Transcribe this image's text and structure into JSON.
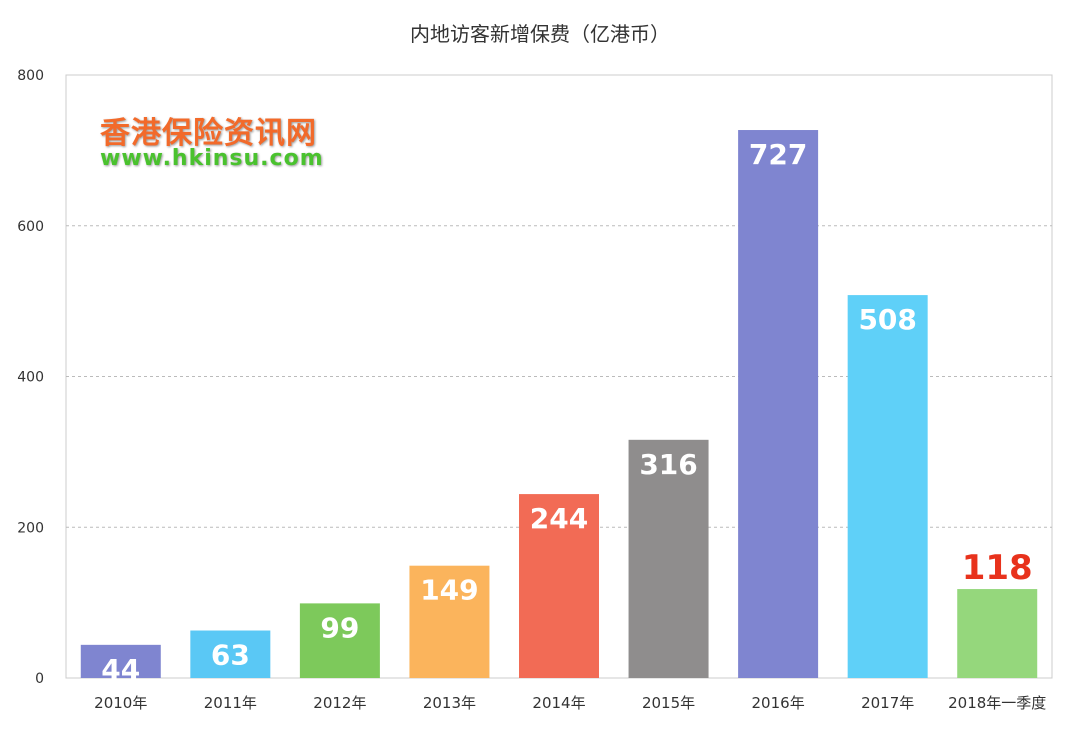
{
  "chart_data": {
    "type": "bar",
    "title": "内地访客新增保费（亿港币）",
    "categories": [
      "2010年",
      "2011年",
      "2012年",
      "2013年",
      "2014年",
      "2015年",
      "2016年",
      "2017年",
      "2018年一季度"
    ],
    "values": [
      44,
      63,
      99,
      149,
      244,
      316,
      727,
      508,
      118
    ],
    "colors": [
      "#7f85d0",
      "#5ac8f5",
      "#7dc95b",
      "#fbb45c",
      "#f26b55",
      "#8f8d8d",
      "#7f85d0",
      "#5fd0f8",
      "#95d77c"
    ],
    "highlight_label_color": "#e8321c",
    "ylim": [
      0,
      800
    ],
    "yticks": [
      0,
      200,
      400,
      600,
      800
    ],
    "xlabel": "",
    "ylabel": "",
    "grid": true
  },
  "watermark": {
    "name": "香港保险资讯网",
    "url": "www.hkinsu.com"
  }
}
